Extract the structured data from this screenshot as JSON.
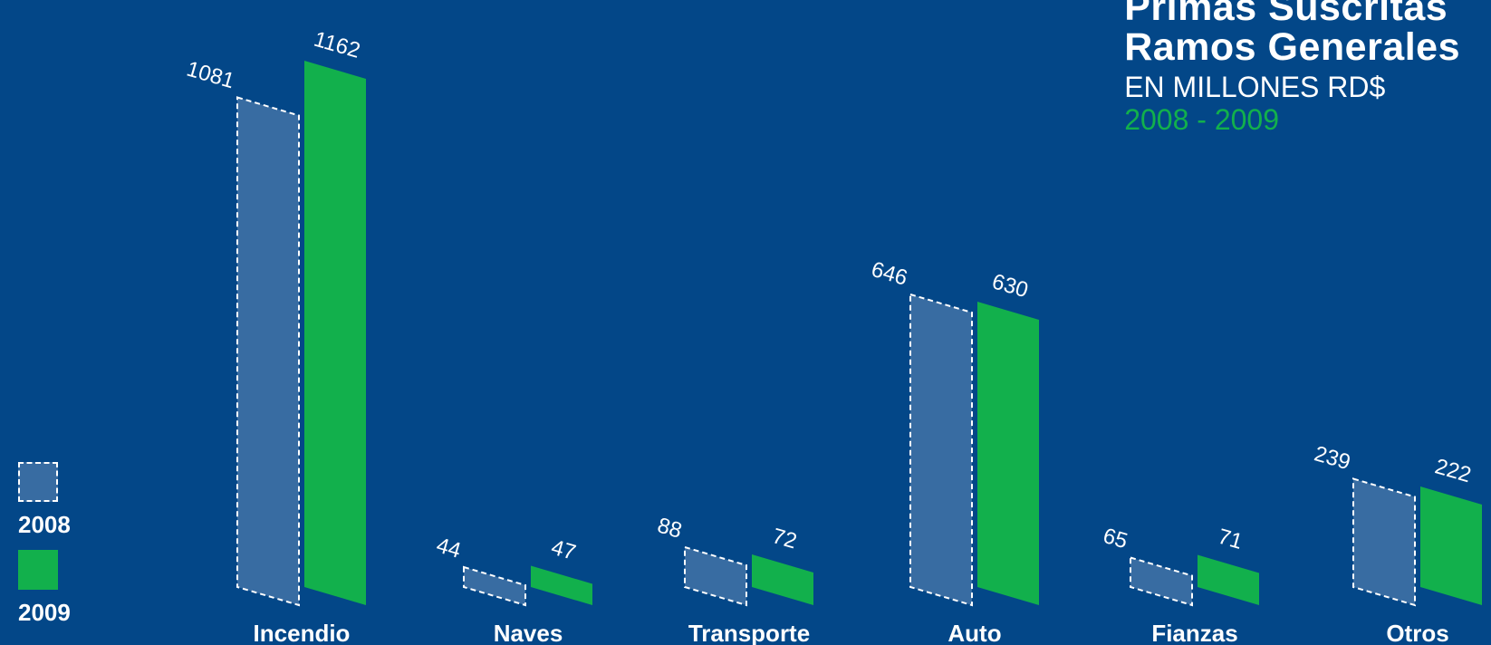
{
  "chart_data": {
    "type": "bar",
    "title": "Primas Suscritas",
    "title_line2": "Ramos Generales",
    "subtitle": "EN MILLONES RD$",
    "years": "2008 - 2009",
    "categories": [
      "Incendio",
      "Naves",
      "Transporte",
      "Auto",
      "Fianzas",
      "Otros"
    ],
    "series": [
      {
        "name": "2008",
        "values": [
          1081,
          44,
          88,
          646,
          65,
          239
        ],
        "color": "#386ca2",
        "style": "dashed-outline"
      },
      {
        "name": "2009",
        "values": [
          1162,
          47,
          72,
          630,
          71,
          222
        ],
        "color": "#12b04c",
        "style": "solid"
      }
    ],
    "legend_position": "left",
    "grid": false,
    "background": "#034788"
  }
}
